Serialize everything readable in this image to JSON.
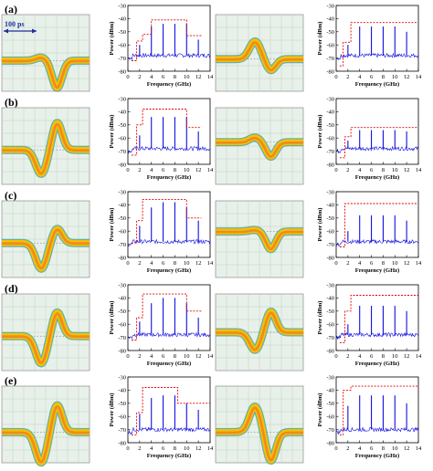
{
  "figure": {
    "row_labels": [
      "(a)",
      "(b)",
      "(c)",
      "(d)",
      "(e)"
    ],
    "scale_bar_label": "100 ps"
  },
  "colors": {
    "trace": "#1010e0",
    "mask": "#e00000",
    "eye_yellow": "#f5c000",
    "eye_orange": "#f08a20",
    "eye_teal": "#4aa8a0",
    "eye_bg": "#e8f1e9",
    "grid": "#b9c9bd",
    "scale_bar": "#1f2f9a"
  },
  "chart_data": [
    {
      "row": "(a)",
      "col": 1,
      "type": "line",
      "xlabel": "Frequency (GHz)",
      "ylabel": "Power (dBm)",
      "xlim": [
        0,
        14
      ],
      "ylim": [
        -80,
        -30
      ],
      "xticks": [
        0,
        2,
        4,
        6,
        8,
        10,
        12,
        14
      ],
      "yticks": [
        -30,
        -40,
        -50,
        -60,
        -70,
        -80
      ],
      "noise_floor": -68,
      "tones": [
        {
          "x": 2,
          "y": -60
        },
        {
          "x": 4,
          "y": -46
        },
        {
          "x": 6,
          "y": -44
        },
        {
          "x": 8,
          "y": -44
        },
        {
          "x": 10,
          "y": -44
        },
        {
          "x": 12,
          "y": -56
        }
      ],
      "mask": [
        [
          0.6,
          -72
        ],
        [
          1.5,
          -72
        ],
        [
          1.5,
          -57
        ],
        [
          2.5,
          -57
        ],
        [
          2.5,
          -52
        ],
        [
          4,
          -52
        ],
        [
          4,
          -41
        ],
        [
          10,
          -41
        ],
        [
          10,
          -53
        ],
        [
          12.5,
          -53
        ]
      ]
    },
    {
      "row": "(a)",
      "col": 2,
      "type": "line",
      "xlabel": "Frequency (GHz)",
      "ylabel": "Power (dBm)",
      "xlim": [
        0,
        14
      ],
      "ylim": [
        -80,
        -30
      ],
      "xticks": [
        0,
        2,
        4,
        6,
        8,
        10,
        12,
        14
      ],
      "yticks": [
        -30,
        -40,
        -50,
        -60,
        -70,
        -80
      ],
      "noise_floor": -68,
      "tones": [
        {
          "x": 2,
          "y": -60
        },
        {
          "x": 4,
          "y": -46
        },
        {
          "x": 6,
          "y": -46
        },
        {
          "x": 8,
          "y": -46
        },
        {
          "x": 10,
          "y": -46
        },
        {
          "x": 12,
          "y": -50
        }
      ],
      "mask": [
        [
          0.6,
          -76
        ],
        [
          1.2,
          -76
        ],
        [
          1.2,
          -58
        ],
        [
          2.5,
          -58
        ],
        [
          2.5,
          -43
        ],
        [
          14,
          -43
        ]
      ]
    },
    {
      "row": "(b)",
      "col": 1,
      "type": "line",
      "xlabel": "Frequency (GHz)",
      "ylabel": "Power (dBm)",
      "xlim": [
        0,
        14
      ],
      "ylim": [
        -80,
        -30
      ],
      "xticks": [
        0,
        2,
        4,
        6,
        8,
        10,
        12,
        14
      ],
      "yticks": [
        -30,
        -40,
        -50,
        -60,
        -70,
        -80
      ],
      "noise_floor": -68,
      "tones": [
        {
          "x": 2,
          "y": -58
        },
        {
          "x": 4,
          "y": -44
        },
        {
          "x": 6,
          "y": -44
        },
        {
          "x": 8,
          "y": -44
        },
        {
          "x": 10,
          "y": -44
        },
        {
          "x": 12,
          "y": -55
        }
      ],
      "mask": [
        [
          0.6,
          -73
        ],
        [
          1.5,
          -73
        ],
        [
          1.5,
          -50
        ],
        [
          2.5,
          -50
        ],
        [
          2.5,
          -38
        ],
        [
          10,
          -38
        ],
        [
          10,
          -52
        ],
        [
          12.5,
          -52
        ]
      ]
    },
    {
      "row": "(b)",
      "col": 2,
      "type": "line",
      "xlabel": "Frequency (GHz)",
      "ylabel": "Power (dBm)",
      "xlim": [
        0,
        14
      ],
      "ylim": [
        -80,
        -30
      ],
      "xticks": [
        0,
        2,
        4,
        6,
        8,
        10,
        12,
        14
      ],
      "yticks": [
        -30,
        -40,
        -50,
        -60,
        -70,
        -80
      ],
      "noise_floor": -68,
      "tones": [
        {
          "x": 2,
          "y": -62
        },
        {
          "x": 4,
          "y": -54
        },
        {
          "x": 6,
          "y": -54
        },
        {
          "x": 8,
          "y": -54
        },
        {
          "x": 10,
          "y": -54
        },
        {
          "x": 12,
          "y": -55
        }
      ],
      "mask": [
        [
          0.6,
          -75
        ],
        [
          1.5,
          -75
        ],
        [
          1.5,
          -59
        ],
        [
          2.5,
          -59
        ],
        [
          2.5,
          -52
        ],
        [
          14,
          -52
        ]
      ]
    },
    {
      "row": "(c)",
      "col": 1,
      "type": "line",
      "xlabel": "Frequency (GHz)",
      "ylabel": "Power (dBm)",
      "xlim": [
        0,
        14
      ],
      "ylim": [
        -80,
        -30
      ],
      "xticks": [
        0,
        2,
        4,
        6,
        8,
        10,
        12,
        14
      ],
      "yticks": [
        -30,
        -40,
        -50,
        -60,
        -70,
        -80
      ],
      "noise_floor": -68,
      "tones": [
        {
          "x": 2,
          "y": -56
        },
        {
          "x": 4,
          "y": -42
        },
        {
          "x": 6,
          "y": -38
        },
        {
          "x": 8,
          "y": -38
        },
        {
          "x": 10,
          "y": -42
        },
        {
          "x": 12,
          "y": -52
        }
      ],
      "mask": [
        [
          0.6,
          -69
        ],
        [
          1.5,
          -69
        ],
        [
          1.5,
          -52
        ],
        [
          2.5,
          -52
        ],
        [
          2.5,
          -36
        ],
        [
          10,
          -36
        ],
        [
          10,
          -50
        ],
        [
          12.5,
          -50
        ]
      ]
    },
    {
      "row": "(c)",
      "col": 2,
      "type": "line",
      "xlabel": "Frequency (GHz)",
      "ylabel": "Power (dBm)",
      "xlim": [
        0,
        14
      ],
      "ylim": [
        -80,
        -30
      ],
      "xticks": [
        0,
        2,
        4,
        6,
        8,
        10,
        12,
        14
      ],
      "yticks": [
        -30,
        -40,
        -50,
        -60,
        -70,
        -80
      ],
      "noise_floor": -68,
      "tones": [
        {
          "x": 2,
          "y": -60
        },
        {
          "x": 4,
          "y": -48
        },
        {
          "x": 6,
          "y": -48
        },
        {
          "x": 8,
          "y": -48
        },
        {
          "x": 10,
          "y": -48
        },
        {
          "x": 12,
          "y": -52
        }
      ],
      "mask": [
        [
          0.6,
          -72
        ],
        [
          1.5,
          -72
        ],
        [
          1.5,
          -39
        ],
        [
          14,
          -39
        ]
      ]
    },
    {
      "row": "(d)",
      "col": 1,
      "type": "line",
      "xlabel": "Frequency (GHz)",
      "ylabel": "Power (dBm)",
      "xlim": [
        0,
        14
      ],
      "ylim": [
        -80,
        -30
      ],
      "xticks": [
        0,
        2,
        4,
        6,
        8,
        10,
        12,
        14
      ],
      "yticks": [
        -30,
        -40,
        -50,
        -60,
        -70,
        -80
      ],
      "noise_floor": -68,
      "tones": [
        {
          "x": 2,
          "y": -58
        },
        {
          "x": 4,
          "y": -44
        },
        {
          "x": 6,
          "y": -40
        },
        {
          "x": 8,
          "y": -40
        },
        {
          "x": 10,
          "y": -44
        },
        {
          "x": 12,
          "y": -55
        }
      ],
      "mask": [
        [
          0.6,
          -72
        ],
        [
          1.5,
          -72
        ],
        [
          1.5,
          -55
        ],
        [
          2.5,
          -55
        ],
        [
          2.5,
          -37
        ],
        [
          10,
          -37
        ],
        [
          10,
          -50
        ],
        [
          12.5,
          -50
        ]
      ]
    },
    {
      "row": "(d)",
      "col": 2,
      "type": "line",
      "xlabel": "Frequency (GHz)",
      "ylabel": "Power (dBm)",
      "xlim": [
        0,
        14
      ],
      "ylim": [
        -80,
        -30
      ],
      "xticks": [
        0,
        2,
        4,
        6,
        8,
        10,
        12,
        14
      ],
      "yticks": [
        -30,
        -40,
        -50,
        -60,
        -70,
        -80
      ],
      "noise_floor": -68,
      "tones": [
        {
          "x": 2,
          "y": -60
        },
        {
          "x": 4,
          "y": -46
        },
        {
          "x": 6,
          "y": -46
        },
        {
          "x": 8,
          "y": -46
        },
        {
          "x": 10,
          "y": -46
        },
        {
          "x": 12,
          "y": -50
        }
      ],
      "mask": [
        [
          0.6,
          -74
        ],
        [
          1.5,
          -74
        ],
        [
          1.5,
          -50
        ],
        [
          2.5,
          -50
        ],
        [
          2.5,
          -38
        ],
        [
          14,
          -38
        ]
      ]
    },
    {
      "row": "(e)",
      "col": 1,
      "type": "line",
      "xlabel": "Frequency (GHz)",
      "ylabel": "Power (dBm)",
      "xlim": [
        0,
        14
      ],
      "ylim": [
        -80,
        -30
      ],
      "xticks": [
        0,
        2,
        4,
        6,
        8,
        10,
        12,
        14
      ],
      "yticks": [
        -30,
        -40,
        -50,
        -60,
        -70,
        -80
      ],
      "noise_floor": -70,
      "tones": [
        {
          "x": 2,
          "y": -58
        },
        {
          "x": 4,
          "y": -46
        },
        {
          "x": 6,
          "y": -44
        },
        {
          "x": 8,
          "y": -44
        },
        {
          "x": 10,
          "y": -50
        },
        {
          "x": 12,
          "y": -55
        }
      ],
      "mask": [
        [
          0.6,
          -74
        ],
        [
          1.5,
          -74
        ],
        [
          1.5,
          -57
        ],
        [
          2.5,
          -57
        ],
        [
          2.5,
          -38
        ],
        [
          8.5,
          -38
        ],
        [
          8.5,
          -50
        ],
        [
          14,
          -50
        ]
      ]
    },
    {
      "row": "(e)",
      "col": 2,
      "type": "line",
      "xlabel": "Frequency (GHz)",
      "ylabel": "Power (dBm)",
      "xlim": [
        0,
        14
      ],
      "ylim": [
        -80,
        -30
      ],
      "xticks": [
        0,
        2,
        4,
        6,
        8,
        10,
        12,
        14
      ],
      "yticks": [
        -30,
        -40,
        -50,
        -60,
        -70,
        -80
      ],
      "noise_floor": -70,
      "tones": [
        {
          "x": 2,
          "y": -52
        },
        {
          "x": 4,
          "y": -44
        },
        {
          "x": 6,
          "y": -44
        },
        {
          "x": 8,
          "y": -44
        },
        {
          "x": 10,
          "y": -44
        },
        {
          "x": 12,
          "y": -50
        }
      ],
      "mask": [
        [
          0.6,
          -74
        ],
        [
          1.2,
          -74
        ],
        [
          1.2,
          -40
        ],
        [
          2.5,
          -40
        ],
        [
          2.5,
          -37
        ],
        [
          14,
          -37
        ]
      ]
    }
  ],
  "eye_diagrams": [
    {
      "row": "(a)",
      "col": 1,
      "shape": [
        0.1,
        -0.85
      ],
      "baseline": 0.6
    },
    {
      "row": "(a)",
      "col": 2,
      "shape": [
        0.55,
        -0.35
      ],
      "baseline": 0.58
    },
    {
      "row": "(b)",
      "col": 1,
      "shape": [
        -0.75,
        0.85
      ],
      "baseline": 0.55
    },
    {
      "row": "(b)",
      "col": 2,
      "shape": [
        0.15,
        -0.45
      ],
      "baseline": 0.45
    },
    {
      "row": "(c)",
      "col": 1,
      "shape": [
        -0.8,
        0.45
      ],
      "baseline": 0.55
    },
    {
      "row": "(c)",
      "col": 2,
      "shape": [
        0.05,
        -0.55
      ],
      "baseline": 0.4
    },
    {
      "row": "(d)",
      "col": 1,
      "shape": [
        -0.85,
        0.75
      ],
      "baseline": 0.55
    },
    {
      "row": "(d)",
      "col": 2,
      "shape": [
        -0.55,
        0.65
      ],
      "baseline": 0.5
    },
    {
      "row": "(e)",
      "col": 1,
      "shape": [
        -0.95,
        0.85
      ],
      "baseline": 0.6
    },
    {
      "row": "(e)",
      "col": 2,
      "shape": [
        0.8,
        -0.9
      ],
      "baseline": 0.6
    }
  ]
}
